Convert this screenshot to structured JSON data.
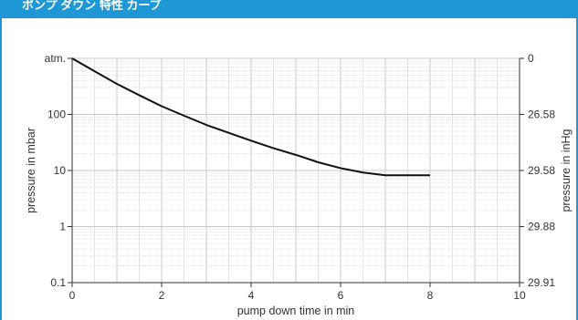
{
  "header": {
    "title": "ポンプ ダウン 特性 カーブ"
  },
  "colors": {
    "accent": "#1f97d4",
    "curve": "#111111",
    "grid_major": "#c8c8c8",
    "grid_minor": "#e3e3e3"
  },
  "chart_data": {
    "type": "line",
    "title": "",
    "xlabel": "pump down time in min",
    "ylabel": "pressure in mbar",
    "ylabel_right": "pressure in inHg",
    "xlim": [
      0,
      10
    ],
    "ylim": [
      0.1,
      1000
    ],
    "yscale": "log",
    "grid": true,
    "x_ticks": [
      "0",
      "2",
      "4",
      "6",
      "8",
      "10"
    ],
    "y_ticks": [
      {
        "value": 1000,
        "label": "atm."
      },
      {
        "value": 100,
        "label": "100"
      },
      {
        "value": 10,
        "label": "10"
      },
      {
        "value": 1,
        "label": "1"
      },
      {
        "value": 0.1,
        "label": "0.1"
      }
    ],
    "y_ticks_right": [
      {
        "value": 1000,
        "label": "0"
      },
      {
        "value": 100,
        "label": "26.58"
      },
      {
        "value": 10,
        "label": "29.58"
      },
      {
        "value": 1,
        "label": "29.88"
      },
      {
        "value": 0.1,
        "label": "29.91"
      }
    ],
    "series": [
      {
        "x": [
          0,
          0.5,
          1,
          1.5,
          2,
          2.5,
          3,
          3.5,
          4,
          4.5,
          5,
          5.5,
          6,
          6.5,
          7,
          7.5,
          8
        ],
        "y": [
          1000,
          590,
          350,
          220,
          140,
          95,
          65,
          47,
          34,
          25,
          19,
          14,
          11,
          9.2,
          8.2,
          8.2,
          8.2
        ]
      }
    ]
  }
}
